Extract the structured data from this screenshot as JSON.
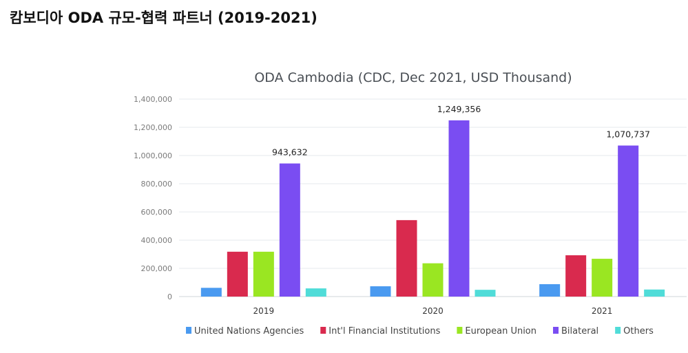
{
  "page": {
    "title": "캄보디아 ODA 규모-협력 파트너 (2019-2021)"
  },
  "chart_data": {
    "type": "bar",
    "title": "ODA Cambodia (CDC, Dec 2021, USD Thousand)",
    "categories": [
      "2019",
      "2020",
      "2021"
    ],
    "ylim": [
      0,
      1400000
    ],
    "yticks": [
      0,
      200000,
      400000,
      600000,
      800000,
      1000000,
      1200000,
      1400000
    ],
    "ytick_labels": [
      "0",
      "200,000",
      "400,000",
      "600,000",
      "800,000",
      "1,000,000",
      "1,200,000",
      "1,400,000"
    ],
    "grid": true,
    "legend_position": "bottom",
    "series": [
      {
        "name": "United Nations Agencies",
        "color": "#4a9af0",
        "values": [
          62000,
          73000,
          88000
        ]
      },
      {
        "name": "Int'l Financial Institutions",
        "color": "#d92a4e",
        "values": [
          318000,
          542000,
          293000
        ]
      },
      {
        "name": "European Union",
        "color": "#9ae622",
        "values": [
          318000,
          236000,
          268000
        ]
      },
      {
        "name": "Bilateral",
        "color": "#7a4df2",
        "values": [
          943632,
          1249356,
          1070737
        ],
        "labels": [
          "943,632",
          "1,249,356",
          "1,070,737"
        ]
      },
      {
        "name": "Others",
        "color": "#50dcd8",
        "values": [
          58000,
          48000,
          50000
        ]
      }
    ]
  }
}
